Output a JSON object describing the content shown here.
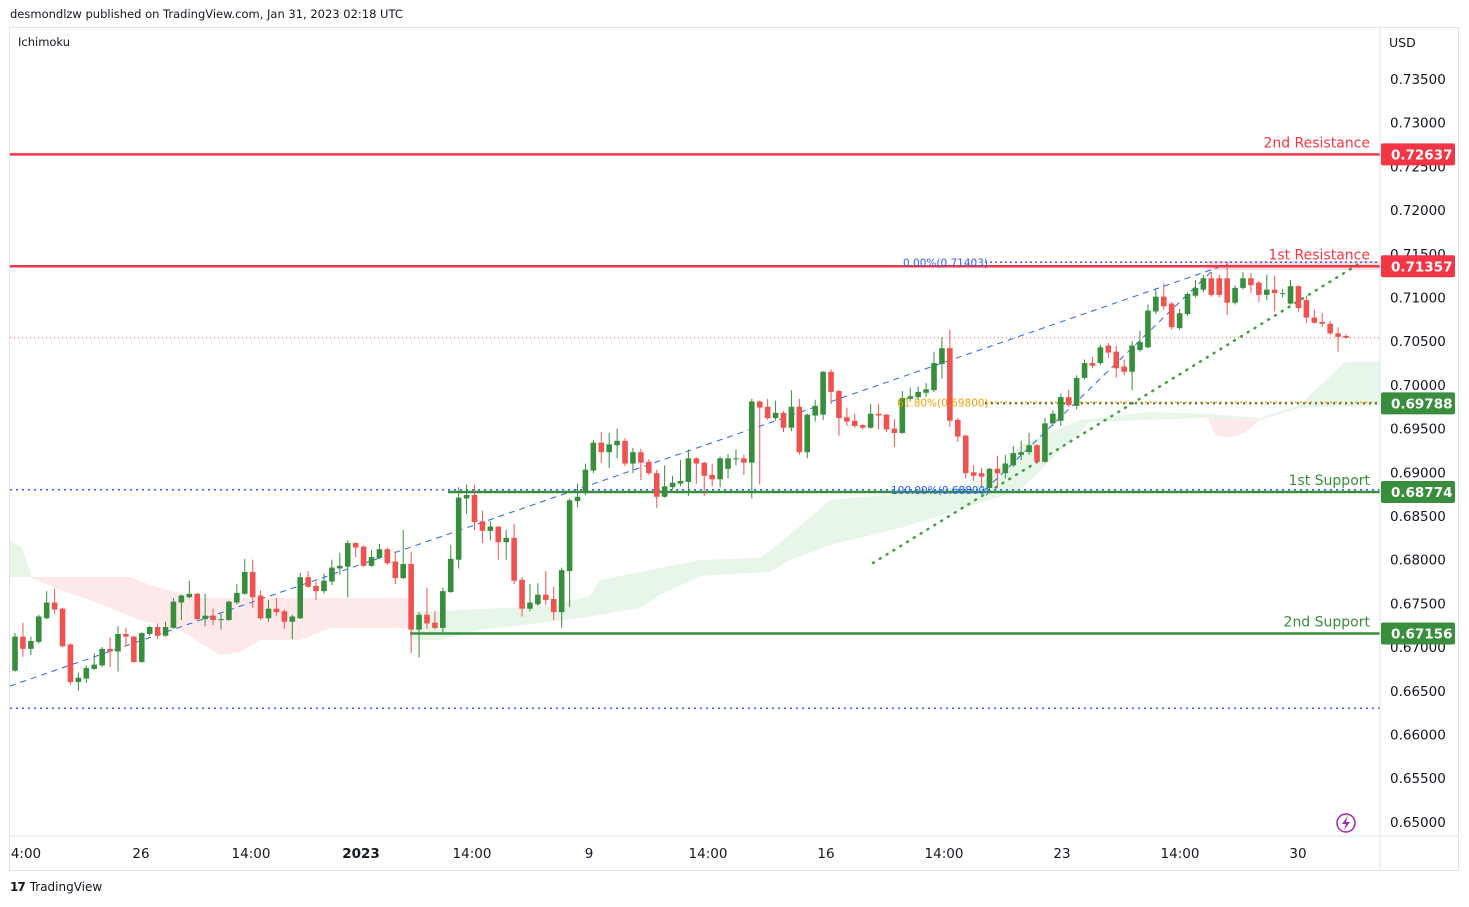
{
  "header": {
    "publisher": "desmondlzw published on TradingView.com, Jan 31, 2023 02:18 UTC"
  },
  "indicator": "Ichimoku",
  "axis": {
    "currency": "USD"
  },
  "footer": {
    "logo_text": "TradingView"
  },
  "colors": {
    "up": "#388e3c",
    "down": "#ef5350",
    "resistance": "#f23645",
    "support": "#388e3c",
    "fib_blue": "#2962ff",
    "fib_orange": "#f0a30a",
    "cloud_bull": "#e8f5e9",
    "cloud_bear": "#fde9e9"
  },
  "chart_data": {
    "type": "candlestick",
    "ylim": [
      0.6475,
      0.7375
    ],
    "grid": false,
    "y_ticks": [
      "0.73500",
      "0.73000",
      "0.72500",
      "0.72000",
      "0.71500",
      "0.71000",
      "0.70500",
      "0.70000",
      "0.69500",
      "0.69000",
      "0.68500",
      "0.68000",
      "0.67500",
      "0.67000",
      "0.66500",
      "0.66000",
      "0.65500",
      "0.65000"
    ],
    "x_ticks": [
      {
        "label": "4:00",
        "bold": false
      },
      {
        "label": "26",
        "bold": false
      },
      {
        "label": "14:00",
        "bold": false
      },
      {
        "label": "2023",
        "bold": true
      },
      {
        "label": "14:00",
        "bold": false
      },
      {
        "label": "9",
        "bold": false
      },
      {
        "label": "14:00",
        "bold": false
      },
      {
        "label": "16",
        "bold": false
      },
      {
        "label": "14:00",
        "bold": false
      },
      {
        "label": "23",
        "bold": false
      },
      {
        "label": "14:00",
        "bold": false
      },
      {
        "label": "30",
        "bold": false
      }
    ],
    "last_price": 0.7054,
    "levels": [
      {
        "label": "2nd Resistance",
        "value": "0.72637",
        "kind": "resistance"
      },
      {
        "label": "1st Resistance",
        "value": "0.71357",
        "kind": "resistance"
      },
      {
        "label": "",
        "value": "0.69788",
        "kind": "support"
      },
      {
        "label": "1st Support",
        "value": "0.68774",
        "kind": "support"
      },
      {
        "label": "2nd Support",
        "value": "0.67156",
        "kind": "support"
      }
    ],
    "horizontal_dotted": [
      0.688,
      0.663
    ],
    "fib": [
      {
        "label": "0.00%(0.71403)",
        "value": 0.71403
      },
      {
        "label": "61.80%(0.69800)",
        "value": 0.698
      },
      {
        "label": "100.00%(0.68800)",
        "value": 0.688
      }
    ],
    "ohlc": [
      [
        0.6673,
        0.6716,
        0.6672,
        0.6712
      ],
      [
        0.6712,
        0.6728,
        0.6689,
        0.6698
      ],
      [
        0.6698,
        0.6712,
        0.6691,
        0.6707
      ],
      [
        0.6706,
        0.6737,
        0.6704,
        0.6735
      ],
      [
        0.6733,
        0.6764,
        0.6732,
        0.6751
      ],
      [
        0.6751,
        0.6767,
        0.6738,
        0.6743
      ],
      [
        0.6744,
        0.6745,
        0.67,
        0.6701
      ],
      [
        0.6703,
        0.6704,
        0.6657,
        0.666
      ],
      [
        0.666,
        0.6671,
        0.665,
        0.6665
      ],
      [
        0.6664,
        0.6679,
        0.6659,
        0.6676
      ],
      [
        0.6675,
        0.6693,
        0.6674,
        0.668
      ],
      [
        0.6679,
        0.67,
        0.6677,
        0.6698
      ],
      [
        0.6698,
        0.6711,
        0.6677,
        0.6695
      ],
      [
        0.6695,
        0.6724,
        0.6672,
        0.6715
      ],
      [
        0.6715,
        0.6722,
        0.6701,
        0.6712
      ],
      [
        0.6712,
        0.6713,
        0.6682,
        0.6683
      ],
      [
        0.6683,
        0.6717,
        0.6682,
        0.6716
      ],
      [
        0.6715,
        0.6724,
        0.6713,
        0.6723
      ],
      [
        0.6723,
        0.6727,
        0.6709,
        0.6713
      ],
      [
        0.6713,
        0.6729,
        0.6712,
        0.6723
      ],
      [
        0.6722,
        0.6756,
        0.6721,
        0.6752
      ],
      [
        0.6751,
        0.676,
        0.6731,
        0.6759
      ],
      [
        0.6757,
        0.6776,
        0.6756,
        0.6761
      ],
      [
        0.6761,
        0.6762,
        0.6731,
        0.6732
      ],
      [
        0.6732,
        0.6761,
        0.6724,
        0.6736
      ],
      [
        0.6736,
        0.6744,
        0.6725,
        0.6731
      ],
      [
        0.6731,
        0.6738,
        0.672,
        0.6732
      ],
      [
        0.6731,
        0.6753,
        0.673,
        0.6752
      ],
      [
        0.6751,
        0.6772,
        0.6749,
        0.6762
      ],
      [
        0.6761,
        0.6801,
        0.676,
        0.6786
      ],
      [
        0.6786,
        0.68,
        0.6745,
        0.6757
      ],
      [
        0.6759,
        0.6765,
        0.6731,
        0.6733
      ],
      [
        0.6733,
        0.6754,
        0.6729,
        0.6744
      ],
      [
        0.6744,
        0.6756,
        0.6736,
        0.674
      ],
      [
        0.6741,
        0.6743,
        0.6721,
        0.6729
      ],
      [
        0.6729,
        0.6737,
        0.6709,
        0.6735
      ],
      [
        0.6733,
        0.6785,
        0.6732,
        0.678
      ],
      [
        0.678,
        0.6787,
        0.6768,
        0.6769
      ],
      [
        0.677,
        0.6775,
        0.6754,
        0.6764
      ],
      [
        0.6764,
        0.6784,
        0.6761,
        0.6776
      ],
      [
        0.6775,
        0.68,
        0.6771,
        0.6791
      ],
      [
        0.679,
        0.6808,
        0.6783,
        0.6793
      ],
      [
        0.6792,
        0.6822,
        0.6757,
        0.6819
      ],
      [
        0.6819,
        0.682,
        0.6803,
        0.6814
      ],
      [
        0.6815,
        0.6816,
        0.6792,
        0.6793
      ],
      [
        0.6793,
        0.6811,
        0.6792,
        0.6803
      ],
      [
        0.6802,
        0.6818,
        0.6801,
        0.6812
      ],
      [
        0.6812,
        0.6814,
        0.6794,
        0.6796
      ],
      [
        0.6798,
        0.681,
        0.6772,
        0.6779
      ],
      [
        0.6779,
        0.6834,
        0.6778,
        0.6795
      ],
      [
        0.6795,
        0.6809,
        0.6693,
        0.672
      ],
      [
        0.672,
        0.674,
        0.6688,
        0.6737
      ],
      [
        0.6737,
        0.6768,
        0.6721,
        0.6727
      ],
      [
        0.6728,
        0.6741,
        0.672,
        0.6722
      ],
      [
        0.6722,
        0.6768,
        0.6717,
        0.6764
      ],
      [
        0.6763,
        0.6817,
        0.6762,
        0.6801
      ],
      [
        0.68,
        0.6883,
        0.679,
        0.6871
      ],
      [
        0.687,
        0.6886,
        0.6852,
        0.6874
      ],
      [
        0.6874,
        0.6886,
        0.6834,
        0.6843
      ],
      [
        0.6844,
        0.6856,
        0.6819,
        0.6833
      ],
      [
        0.6833,
        0.6844,
        0.6822,
        0.6838
      ],
      [
        0.6838,
        0.6838,
        0.68,
        0.682
      ],
      [
        0.682,
        0.6834,
        0.68,
        0.6825
      ],
      [
        0.6825,
        0.6841,
        0.6772,
        0.6776
      ],
      [
        0.6777,
        0.678,
        0.6735,
        0.6744
      ],
      [
        0.6744,
        0.6772,
        0.6741,
        0.6751
      ],
      [
        0.6749,
        0.6773,
        0.6747,
        0.676
      ],
      [
        0.676,
        0.6787,
        0.6748,
        0.6754
      ],
      [
        0.6755,
        0.6769,
        0.6731,
        0.674
      ],
      [
        0.674,
        0.6791,
        0.6722,
        0.6788
      ],
      [
        0.6787,
        0.687,
        0.6746,
        0.6868
      ],
      [
        0.6867,
        0.6887,
        0.686,
        0.6872
      ],
      [
        0.6878,
        0.691,
        0.6874,
        0.6903
      ],
      [
        0.6902,
        0.6937,
        0.6899,
        0.6934
      ],
      [
        0.6934,
        0.6946,
        0.6911,
        0.6923
      ],
      [
        0.6923,
        0.6945,
        0.6905,
        0.6932
      ],
      [
        0.6931,
        0.695,
        0.6916,
        0.6936
      ],
      [
        0.6936,
        0.6939,
        0.6907,
        0.691
      ],
      [
        0.691,
        0.6928,
        0.6899,
        0.6923
      ],
      [
        0.6923,
        0.6927,
        0.6891,
        0.6911
      ],
      [
        0.6912,
        0.6915,
        0.6897,
        0.6899
      ],
      [
        0.6899,
        0.6903,
        0.6859,
        0.6872
      ],
      [
        0.6872,
        0.6908,
        0.6871,
        0.6884
      ],
      [
        0.6883,
        0.6896,
        0.688,
        0.6888
      ],
      [
        0.6887,
        0.6914,
        0.6884,
        0.689
      ],
      [
        0.6889,
        0.6926,
        0.6873,
        0.6916
      ],
      [
        0.6916,
        0.6917,
        0.6887,
        0.691
      ],
      [
        0.6911,
        0.6912,
        0.6873,
        0.6896
      ],
      [
        0.6897,
        0.691,
        0.6884,
        0.6892
      ],
      [
        0.6892,
        0.6918,
        0.6883,
        0.6916
      ],
      [
        0.6904,
        0.6921,
        0.6893,
        0.6916
      ],
      [
        0.6915,
        0.6926,
        0.6908,
        0.6916
      ],
      [
        0.6916,
        0.692,
        0.6897,
        0.6911
      ],
      [
        0.6911,
        0.6984,
        0.687,
        0.6981
      ],
      [
        0.6981,
        0.6982,
        0.6886,
        0.6974
      ],
      [
        0.6975,
        0.6984,
        0.696,
        0.6962
      ],
      [
        0.6962,
        0.6982,
        0.6959,
        0.6968
      ],
      [
        0.6968,
        0.697,
        0.6946,
        0.6951
      ],
      [
        0.6951,
        0.6994,
        0.6947,
        0.6975
      ],
      [
        0.6975,
        0.6984,
        0.692,
        0.6923
      ],
      [
        0.6923,
        0.6967,
        0.6916,
        0.6966
      ],
      [
        0.6965,
        0.6983,
        0.6958,
        0.6976
      ],
      [
        0.6966,
        0.7016,
        0.696,
        0.7015
      ],
      [
        0.7015,
        0.7018,
        0.6978,
        0.6992
      ],
      [
        0.6993,
        0.6994,
        0.6942,
        0.6962
      ],
      [
        0.6963,
        0.6974,
        0.6953,
        0.6958
      ],
      [
        0.6959,
        0.6967,
        0.6951,
        0.6953
      ],
      [
        0.6954,
        0.6955,
        0.6949,
        0.6951
      ],
      [
        0.6951,
        0.6978,
        0.695,
        0.6967
      ],
      [
        0.6967,
        0.6978,
        0.6949,
        0.6965
      ],
      [
        0.6966,
        0.6967,
        0.6946,
        0.6949
      ],
      [
        0.695,
        0.6961,
        0.6929,
        0.6945
      ],
      [
        0.6945,
        0.6993,
        0.6944,
        0.6985
      ],
      [
        0.6984,
        0.6997,
        0.6981,
        0.6987
      ],
      [
        0.6986,
        0.6998,
        0.6983,
        0.6992
      ],
      [
        0.6991,
        0.7002,
        0.6986,
        0.6995
      ],
      [
        0.6994,
        0.7038,
        0.6992,
        0.7025
      ],
      [
        0.7024,
        0.7055,
        0.7007,
        0.7042
      ],
      [
        0.7042,
        0.7063,
        0.6952,
        0.6959
      ],
      [
        0.696,
        0.6962,
        0.6935,
        0.6941
      ],
      [
        0.6942,
        0.6943,
        0.6893,
        0.6899
      ],
      [
        0.69,
        0.6908,
        0.689,
        0.6896
      ],
      [
        0.6899,
        0.6905,
        0.6882,
        0.6895
      ],
      [
        0.6882,
        0.6905,
        0.6878,
        0.6904
      ],
      [
        0.6904,
        0.6919,
        0.6883,
        0.6899
      ],
      [
        0.6899,
        0.692,
        0.6893,
        0.691
      ],
      [
        0.6908,
        0.693,
        0.6906,
        0.6922
      ],
      [
        0.692,
        0.6936,
        0.6914,
        0.6923
      ],
      [
        0.6923,
        0.6945,
        0.692,
        0.6931
      ],
      [
        0.6931,
        0.6932,
        0.691,
        0.6912
      ],
      [
        0.6912,
        0.6962,
        0.6911,
        0.6956
      ],
      [
        0.6956,
        0.6971,
        0.6953,
        0.6967
      ],
      [
        0.6959,
        0.699,
        0.6953,
        0.6986
      ],
      [
        0.6986,
        0.6994,
        0.6975,
        0.6977
      ],
      [
        0.6976,
        0.7011,
        0.6972,
        0.7008
      ],
      [
        0.7008,
        0.7029,
        0.7006,
        0.7025
      ],
      [
        0.7025,
        0.7032,
        0.7019,
        0.7022
      ],
      [
        0.7025,
        0.7046,
        0.7023,
        0.7043
      ],
      [
        0.7045,
        0.7048,
        0.7031,
        0.7037
      ],
      [
        0.7038,
        0.7045,
        0.7008,
        0.7019
      ],
      [
        0.7021,
        0.7029,
        0.7011,
        0.7015
      ],
      [
        0.7015,
        0.705,
        0.6994,
        0.7045
      ],
      [
        0.704,
        0.7062,
        0.7038,
        0.7049
      ],
      [
        0.7043,
        0.7092,
        0.7042,
        0.7085
      ],
      [
        0.7084,
        0.7109,
        0.7081,
        0.7101
      ],
      [
        0.7101,
        0.7116,
        0.7086,
        0.709
      ],
      [
        0.7093,
        0.7095,
        0.7063,
        0.7066
      ],
      [
        0.7065,
        0.7087,
        0.7063,
        0.7082
      ],
      [
        0.7081,
        0.7106,
        0.7079,
        0.7104
      ],
      [
        0.7102,
        0.712,
        0.71,
        0.7111
      ],
      [
        0.7109,
        0.7126,
        0.7106,
        0.7122
      ],
      [
        0.7122,
        0.7129,
        0.7101,
        0.7103
      ],
      [
        0.7122,
        0.7126,
        0.71,
        0.7103
      ],
      [
        0.7122,
        0.714,
        0.708,
        0.7094
      ],
      [
        0.7094,
        0.7114,
        0.7092,
        0.7111
      ],
      [
        0.7111,
        0.7129,
        0.7109,
        0.7122
      ],
      [
        0.7122,
        0.7128,
        0.7105,
        0.7114
      ],
      [
        0.7117,
        0.7119,
        0.7095,
        0.7103
      ],
      [
        0.7103,
        0.7126,
        0.7097,
        0.7109
      ],
      [
        0.7109,
        0.7125,
        0.7084,
        0.7105
      ],
      [
        0.7104,
        0.711,
        0.71,
        0.7105
      ],
      [
        0.7093,
        0.712,
        0.7092,
        0.7113
      ],
      [
        0.7113,
        0.7114,
        0.7084,
        0.7088
      ],
      [
        0.7097,
        0.7102,
        0.7071,
        0.7077
      ],
      [
        0.7077,
        0.7086,
        0.707,
        0.7071
      ],
      [
        0.7072,
        0.7082,
        0.7066,
        0.707
      ],
      [
        0.707,
        0.7073,
        0.7057,
        0.7059
      ],
      [
        0.7059,
        0.7066,
        0.7038,
        0.7055
      ],
      [
        0.7056,
        0.7058,
        0.7053,
        0.7054
      ]
    ]
  }
}
